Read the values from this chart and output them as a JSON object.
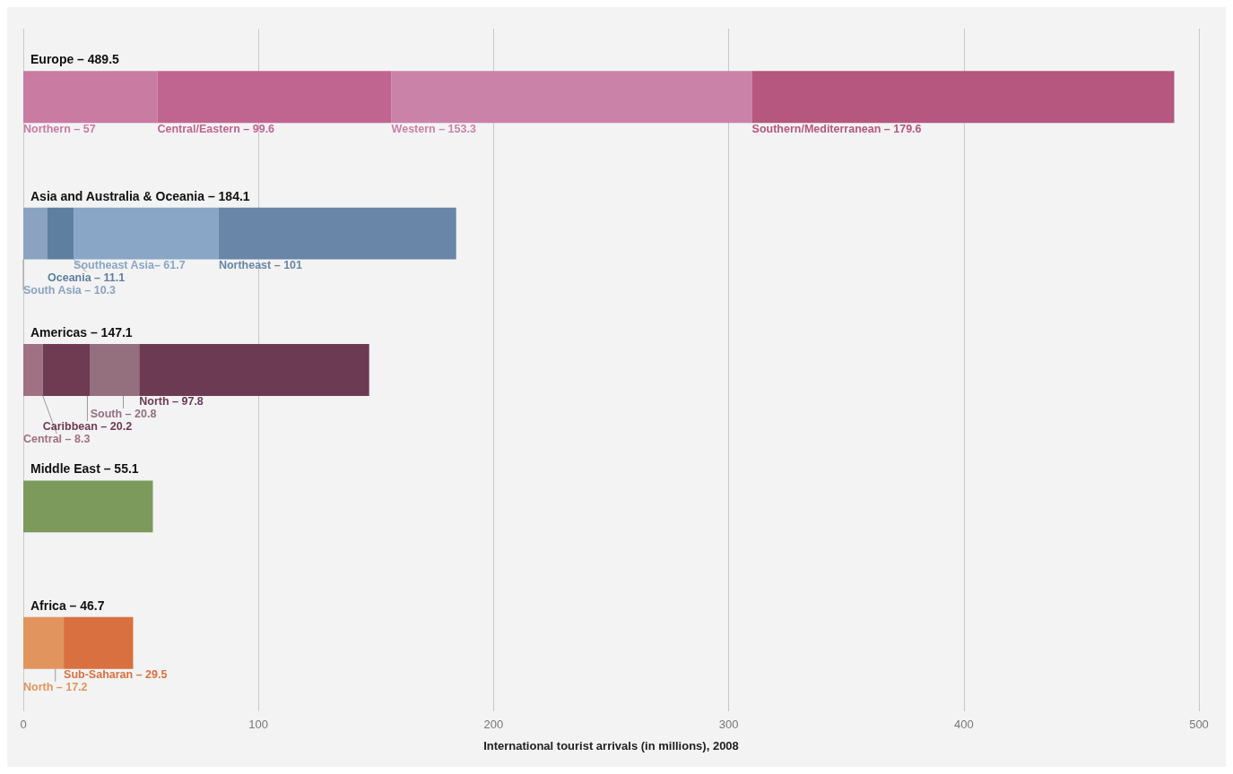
{
  "chart_data": {
    "type": "bar",
    "orientation": "horizontal",
    "stacked": true,
    "xlabel": "International tourist arrivals (in millions), 2008",
    "categories": [
      "Europe – 489.5",
      "Asia and Australia & Oceania – 184.1",
      "Americas – 147.1",
      "Middle East – 55.1",
      "Africa – 46.7"
    ],
    "series": [
      {
        "name": "Northern –",
        "color": "#c97ba2",
        "values": [
          57,
          null,
          null,
          null,
          null
        ],
        "value_labels": [
          "57",
          null,
          null,
          null,
          null
        ]
      },
      {
        "name": "Central/Eastern –",
        "color": "#bf6590",
        "values": [
          99.6,
          null,
          null,
          null,
          null
        ],
        "value_labels": [
          "99.6",
          null,
          null,
          null,
          null
        ]
      },
      {
        "name": "Western –",
        "color": "#cb82a8",
        "values": [
          153.3,
          null,
          null,
          null,
          null
        ],
        "value_labels": [
          "153.3",
          null,
          null,
          null,
          null
        ]
      },
      {
        "name": "Southern/Mediterranean –",
        "color": "#b5577f",
        "values": [
          179.6,
          null,
          null,
          null,
          null
        ],
        "value_labels": [
          "179.6",
          null,
          null,
          null,
          null
        ]
      },
      {
        "name": "South Asia –",
        "color": "#8ba3c0",
        "values": [
          null,
          10.3,
          null,
          null,
          null
        ],
        "value_labels": [
          null,
          "10.3",
          null,
          null,
          null
        ]
      },
      {
        "name": "Oceania –",
        "color": "#5f7fa0",
        "values": [
          null,
          11.1,
          null,
          null,
          null
        ],
        "value_labels": [
          null,
          "11.1",
          null,
          null,
          null
        ]
      },
      {
        "name": "Southeast Asia–",
        "color": "#8aa6c6",
        "values": [
          null,
          61.7,
          null,
          null,
          null
        ],
        "value_labels": [
          null,
          "61.7",
          null,
          null,
          null
        ]
      },
      {
        "name": "Northeast –",
        "color": "#6986a8",
        "values": [
          null,
          101,
          null,
          null,
          null
        ],
        "value_labels": [
          null,
          "101",
          null,
          null,
          null
        ]
      },
      {
        "name": "Central –",
        "color": "#a07083",
        "values": [
          null,
          null,
          8.3,
          null,
          null
        ],
        "value_labels": [
          null,
          null,
          "8.3",
          null,
          null
        ]
      },
      {
        "name": "Caribbean –",
        "color": "#6e3b53",
        "values": [
          null,
          null,
          20.2,
          null,
          null
        ],
        "value_labels": [
          null,
          null,
          "20.2",
          null,
          null
        ]
      },
      {
        "name": "South –",
        "color": "#94707f",
        "values": [
          null,
          null,
          20.8,
          null,
          null
        ],
        "value_labels": [
          null,
          null,
          "20.8",
          null,
          null
        ]
      },
      {
        "name": "North –",
        "color": "#6c3b53",
        "values": [
          null,
          null,
          97.8,
          null,
          null
        ],
        "value_labels": [
          null,
          null,
          "97.8",
          null,
          null
        ]
      },
      {
        "color": "#7b9a5c",
        "values": [
          null,
          null,
          null,
          55.1,
          null
        ]
      },
      {
        "name": "North –",
        "color": "#e2945f",
        "values": [
          null,
          null,
          null,
          null,
          17.2
        ],
        "value_labels": [
          null,
          null,
          null,
          null,
          "17.2"
        ]
      },
      {
        "name": "Sub-Saharan –",
        "color": "#d8713f",
        "values": [
          null,
          null,
          null,
          null,
          29.5
        ],
        "value_labels": [
          null,
          null,
          null,
          null,
          "29.5"
        ]
      }
    ],
    "xlim": [
      0,
      500
    ],
    "xticks": [
      0,
      100,
      200,
      300,
      400,
      500
    ],
    "grid": "x",
    "legend": false
  }
}
